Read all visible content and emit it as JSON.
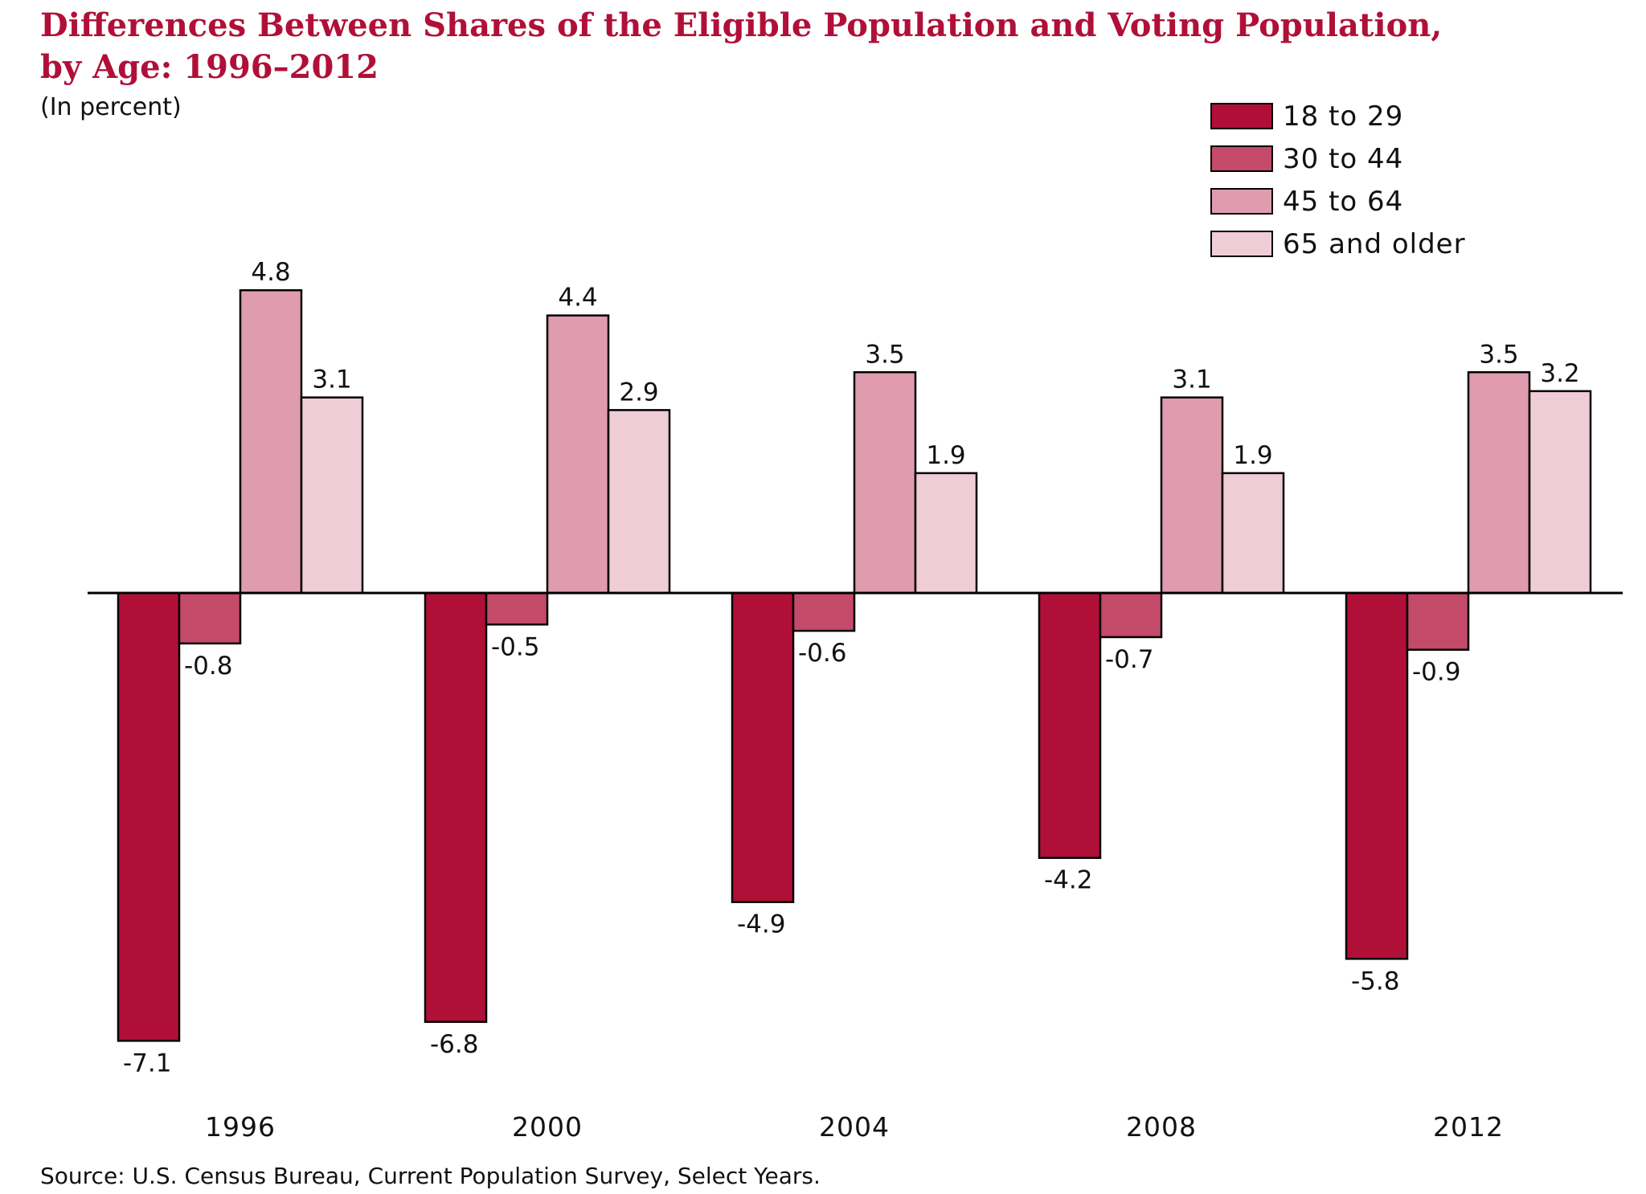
{
  "chart_data": {
    "type": "bar",
    "title": "Differences Between Shares of the Eligible Population and Voting Population, by Age: 1996–2012",
    "title_lines": [
      "Differences Between Shares of the Eligible Population and Voting Population,",
      "by Age: 1996–2012"
    ],
    "subtitle": "(In percent)",
    "xlabel": "",
    "ylabel": "",
    "categories": [
      "1996",
      "2000",
      "2004",
      "2008",
      "2012"
    ],
    "series": [
      {
        "name": "18 to 29",
        "color": "#b01038",
        "values": [
          -7.1,
          -6.8,
          -4.9,
          -4.2,
          -5.8
        ],
        "labels": [
          "-7.1",
          "-6.8",
          "-4.9",
          "-4.2",
          "-5.8"
        ]
      },
      {
        "name": "30 to 44",
        "color": "#c44a6a",
        "values": [
          -0.8,
          -0.5,
          -0.6,
          -0.7,
          -0.9
        ],
        "labels": [
          "-0.8",
          "-0.5",
          "-0.6",
          "-0.7",
          "-0.9"
        ]
      },
      {
        "name": "45 to 64",
        "color": "#df9cae",
        "values": [
          4.8,
          4.4,
          3.5,
          3.1,
          3.5
        ],
        "labels": [
          "4.8",
          "4.4",
          "3.5",
          "3.1",
          "3.5"
        ]
      },
      {
        "name": "65 and older",
        "color": "#efcdd6",
        "values": [
          3.1,
          2.9,
          1.9,
          1.9,
          3.2
        ],
        "labels": [
          "3.1",
          "2.9",
          "1.9",
          "1.9",
          "3.2"
        ]
      }
    ],
    "ylim": [
      -7.5,
      5.5
    ],
    "grid": false,
    "legend_position": "top-right",
    "source": "Source: U.S. Census Bureau, Current Population Survey, Select Years."
  }
}
